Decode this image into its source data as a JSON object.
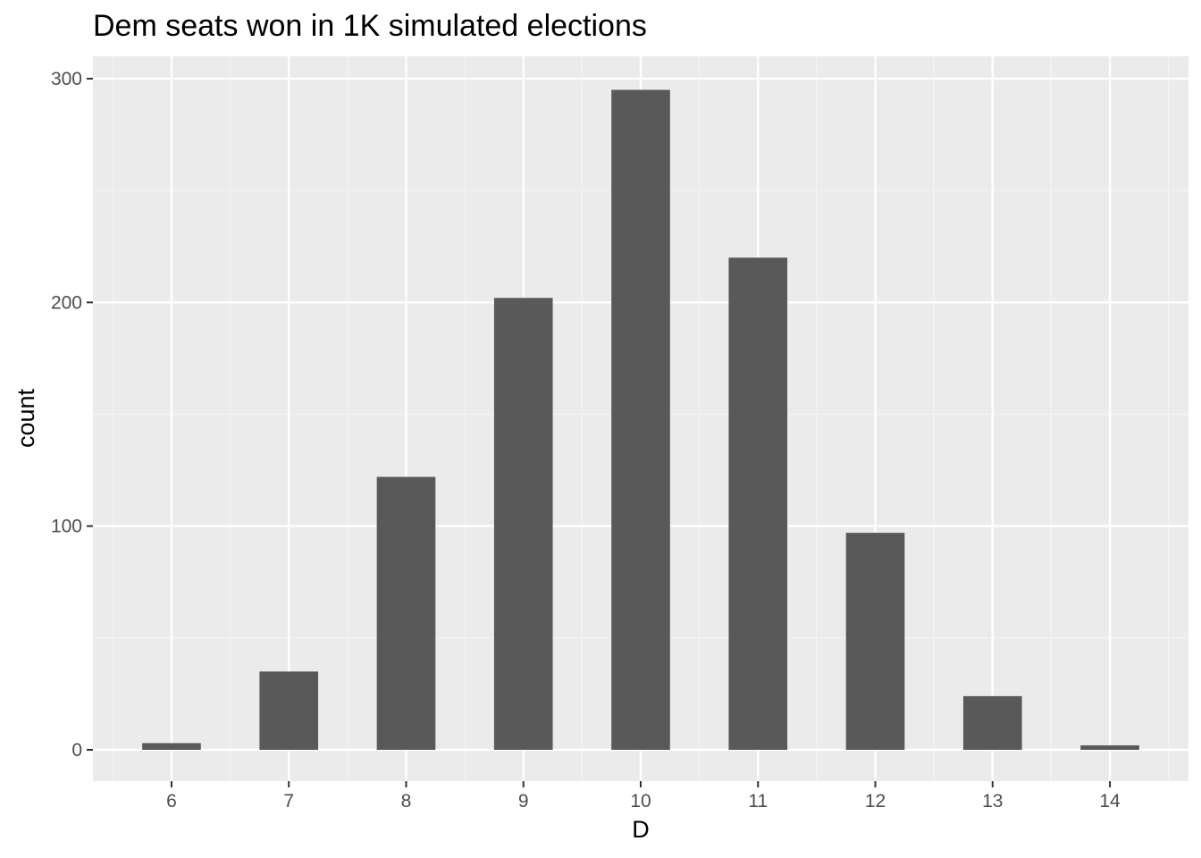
{
  "colors": {
    "panel_background": "#ebebeb",
    "grid_major": "#ffffff",
    "grid_minor": "#f5f5f5",
    "bar_fill": "#595959",
    "tick_mark": "#333333"
  },
  "chart_data": {
    "type": "bar",
    "title": "Dem seats won in 1K simulated elections",
    "xlabel": "D",
    "ylabel": "count",
    "categories": [
      "6",
      "7",
      "8",
      "9",
      "10",
      "11",
      "12",
      "13",
      "14"
    ],
    "values": [
      3,
      35,
      122,
      202,
      295,
      220,
      97,
      24,
      2
    ],
    "ylim": [
      -14,
      310
    ],
    "yticks": [
      "0",
      "100",
      "200",
      "300"
    ],
    "grid": true,
    "legend": "none"
  }
}
